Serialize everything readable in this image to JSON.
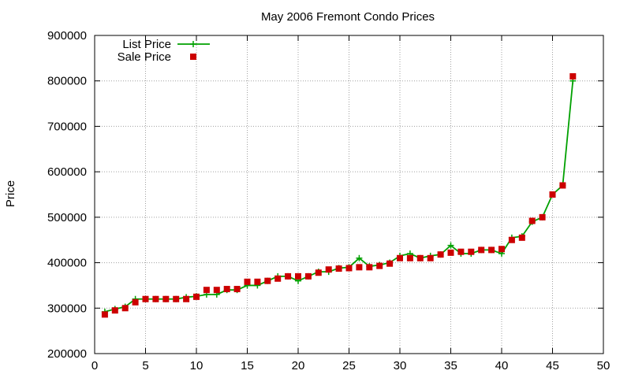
{
  "chart_data": {
    "type": "line",
    "title": "May 2006 Fremont Condo Prices",
    "xlabel": "",
    "ylabel": "Price",
    "xlim": [
      0,
      50
    ],
    "ylim": [
      200000,
      900000
    ],
    "x_ticks": [
      0,
      5,
      10,
      15,
      20,
      25,
      30,
      35,
      40,
      45,
      50
    ],
    "y_ticks": [
      200000,
      300000,
      400000,
      500000,
      600000,
      700000,
      800000,
      900000
    ],
    "grid": true,
    "legend_position": "top-left",
    "series": [
      {
        "name": "List Price",
        "style": "line+plus-markers",
        "color": "#00a000",
        "x": [
          1,
          2,
          3,
          4,
          5,
          6,
          7,
          8,
          9,
          10,
          11,
          12,
          13,
          14,
          15,
          16,
          17,
          18,
          19,
          20,
          21,
          22,
          23,
          24,
          25,
          26,
          27,
          28,
          29,
          30,
          31,
          32,
          33,
          34,
          35,
          36,
          37,
          38,
          39,
          40,
          41,
          42,
          43,
          44,
          45,
          46,
          47
        ],
        "values": [
          292000,
          298000,
          303000,
          320000,
          320000,
          320000,
          320000,
          320000,
          324000,
          326000,
          330000,
          330000,
          340000,
          340000,
          350000,
          350000,
          360000,
          370000,
          370000,
          360000,
          370000,
          380000,
          380000,
          388000,
          390000,
          410000,
          392000,
          395000,
          400000,
          415000,
          420000,
          410000,
          415000,
          418000,
          438000,
          420000,
          420000,
          428000,
          428000,
          420000,
          455000,
          458000,
          490000,
          500000,
          550000,
          570000,
          800000
        ]
      },
      {
        "name": "Sale Price",
        "style": "square-markers",
        "color": "#cc0000",
        "x": [
          1,
          2,
          3,
          4,
          5,
          6,
          7,
          8,
          9,
          10,
          11,
          12,
          13,
          14,
          15,
          16,
          17,
          18,
          19,
          20,
          21,
          22,
          23,
          24,
          25,
          26,
          27,
          28,
          29,
          30,
          31,
          32,
          33,
          34,
          35,
          36,
          37,
          38,
          39,
          40,
          41,
          42,
          43,
          44,
          45,
          46,
          47
        ],
        "values": [
          286000,
          295000,
          300000,
          313000,
          320000,
          320000,
          320000,
          320000,
          320000,
          325000,
          340000,
          340000,
          342000,
          342000,
          358000,
          358000,
          360000,
          365000,
          370000,
          370000,
          370000,
          378000,
          385000,
          387000,
          388000,
          390000,
          390000,
          393000,
          398000,
          410000,
          410000,
          410000,
          410000,
          418000,
          422000,
          424000,
          424000,
          428000,
          428000,
          430000,
          450000,
          455000,
          492000,
          500000,
          550000,
          570000,
          810000
        ]
      }
    ]
  }
}
